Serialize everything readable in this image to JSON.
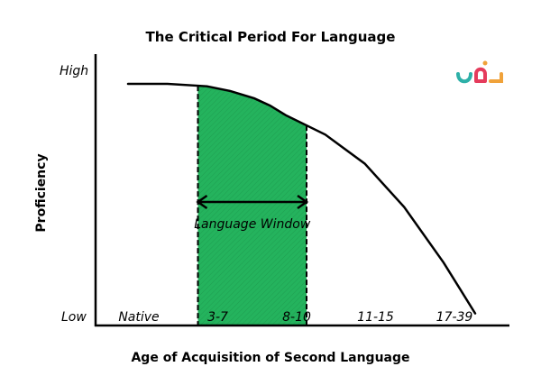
{
  "chart_data": {
    "type": "line",
    "title": "The Critical Period For Language",
    "xlabel": "Age of Acquisition of Second Language",
    "ylabel": "Proficiency",
    "y_ticks": [
      "High",
      "Low"
    ],
    "categories": [
      "Native",
      "3-7",
      "8-10",
      "11-15",
      "17-39"
    ],
    "series": [
      {
        "x": [
          0,
          0.5,
          1,
          1.3,
          1.6,
          1.8,
          2,
          2.5,
          3,
          3.5,
          4,
          4.4
        ],
        "y": [
          100,
          100,
          99,
          97,
          94,
          91,
          87,
          79,
          67,
          49,
          26,
          5
        ]
      }
    ],
    "shaded_region": {
      "from": "3-7",
      "to": "8-10",
      "label": "Language Window",
      "color": "#24b35d"
    },
    "grid": false
  },
  "logo": {
    "name": "logo-icon",
    "colors": [
      "#2db0a8",
      "#e53b5c",
      "#f0a23a"
    ]
  }
}
